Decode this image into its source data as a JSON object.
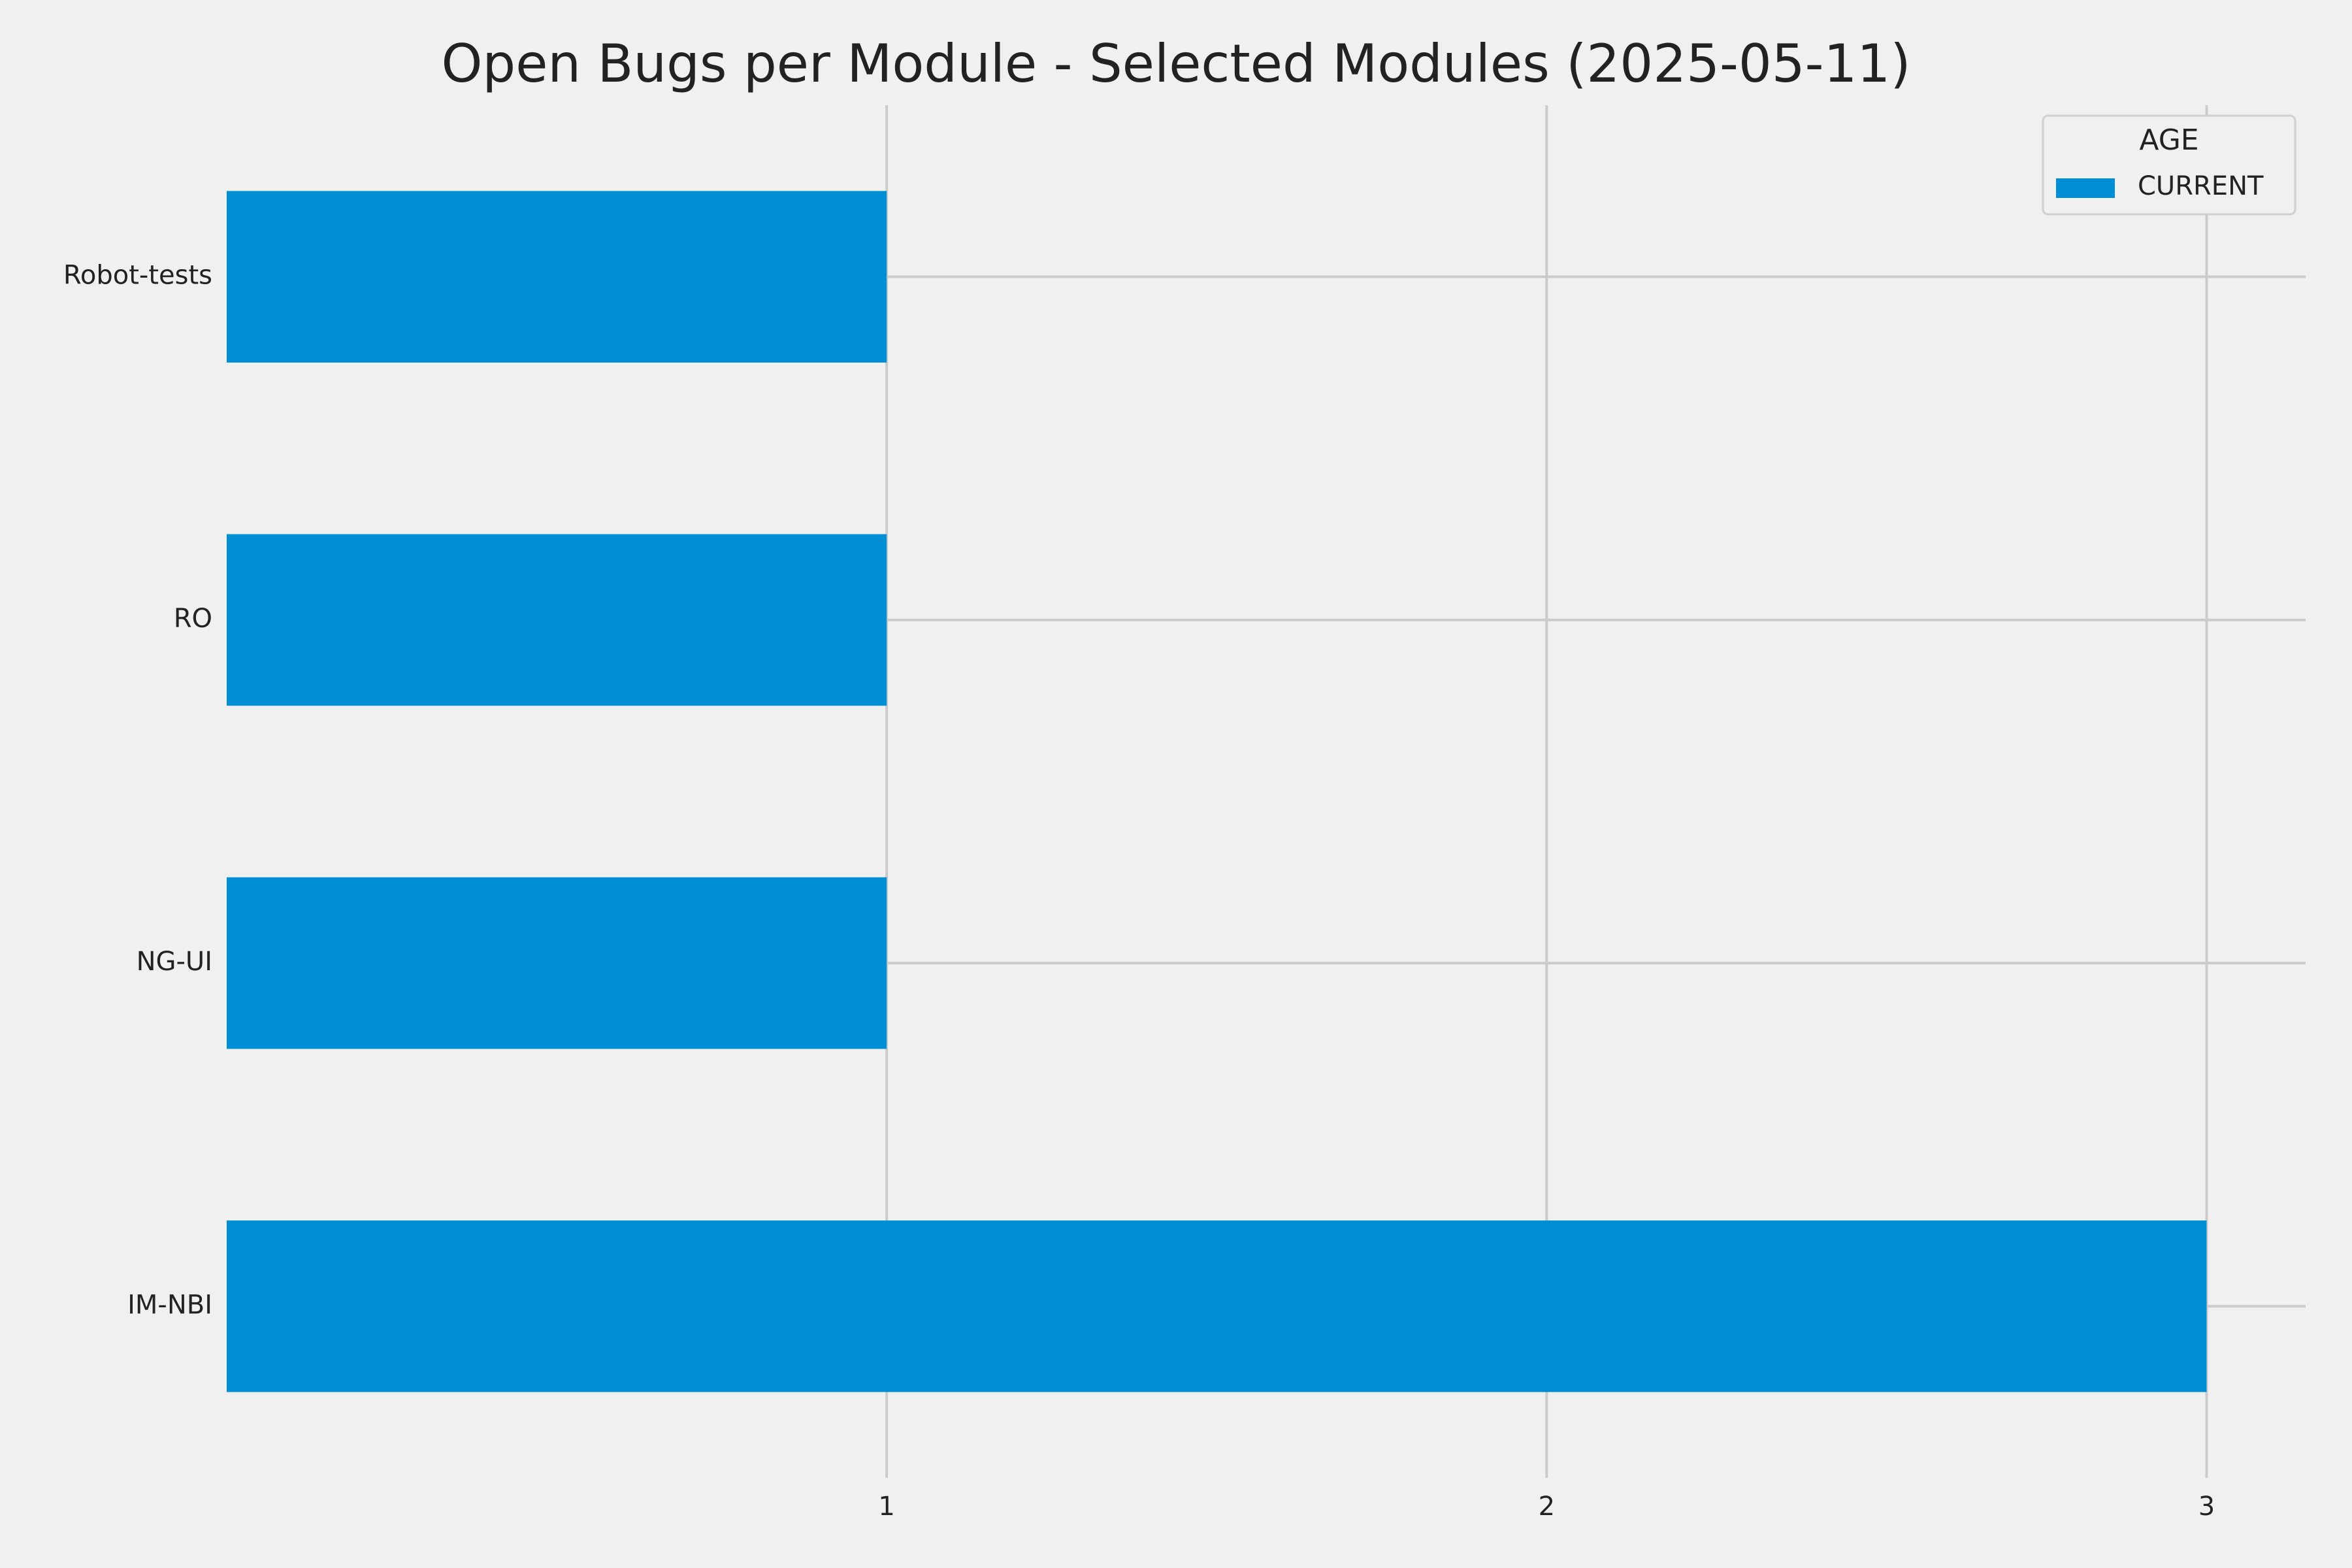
{
  "chart_data": {
    "type": "barh",
    "title": "Open Bugs per Module - Selected Modules (2025-05-11)",
    "categories": [
      "Robot-tests",
      "RO",
      "NG-UI",
      "IM-NBI"
    ],
    "series": [
      {
        "name": "CURRENT",
        "color": "#008fd5",
        "values": [
          1,
          1,
          1,
          3
        ]
      }
    ],
    "legend_title": "AGE",
    "legend_position": "upper right",
    "xlim": [
      0,
      3.15
    ],
    "xticks": [
      1,
      2,
      3
    ],
    "grid": true
  }
}
